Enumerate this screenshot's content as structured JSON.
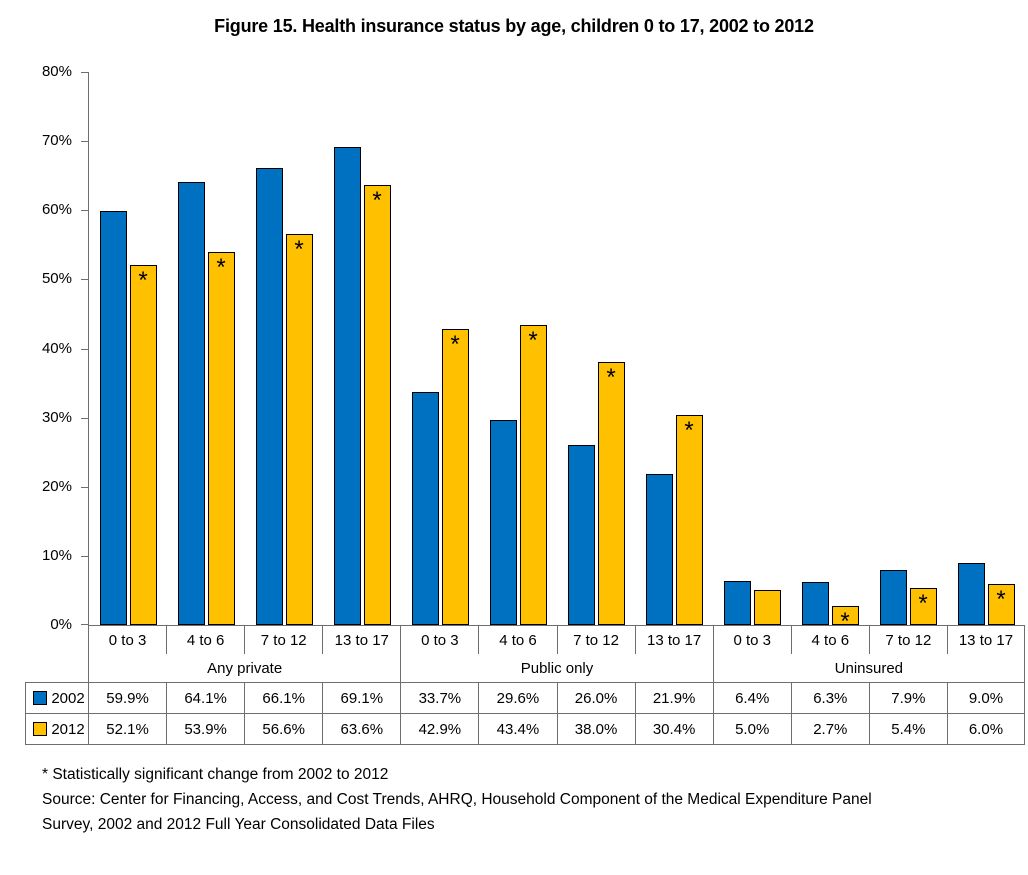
{
  "title": "Figure 15. Health insurance status by age, children 0 to 17, 2002 to 2012",
  "footnotes": {
    "significance": "* Statistically significant change from 2002 to 2012",
    "source": "Source: Center for Financing, Access, and Cost Trends, AHRQ, Household Component of the Medical Expenditure Panel Survey, 2002 and 2012 Full Year Consolidated Data Files"
  },
  "colors": {
    "series_2002": "#0070C0",
    "series_2012": "#FFC000",
    "bar_border": "#000000",
    "line": "#6e6e6e"
  },
  "chart_data": {
    "type": "bar",
    "title": "Figure 15. Health insurance status by age, children 0 to 17, 2002 to 2012",
    "xlabel": "",
    "ylabel": "",
    "ylim": [
      0,
      80
    ],
    "ytick_labels": [
      "0%",
      "10%",
      "20%",
      "30%",
      "40%",
      "50%",
      "60%",
      "70%",
      "80%"
    ],
    "grid": false,
    "legend_position": "table-left",
    "groups": [
      {
        "label": "Any private",
        "categories": [
          "0 to 3",
          "4 to 6",
          "7 to 12",
          "13 to 17"
        ]
      },
      {
        "label": "Public only",
        "categories": [
          "0 to 3",
          "4 to 6",
          "7 to 12",
          "13 to 17"
        ]
      },
      {
        "label": "Uninsured",
        "categories": [
          "0 to 3",
          "4 to 6",
          "7 to 12",
          "13 to 17"
        ]
      }
    ],
    "series": [
      {
        "name": "2002",
        "color": "#0070C0",
        "values": [
          59.9,
          64.1,
          66.1,
          69.1,
          33.7,
          29.6,
          26.0,
          21.9,
          6.4,
          6.3,
          7.9,
          9.0
        ],
        "value_labels": [
          "59.9%",
          "64.1%",
          "66.1%",
          "69.1%",
          "33.7%",
          "29.6%",
          "26.0%",
          "21.9%",
          "6.4%",
          "6.3%",
          "7.9%",
          "9.0%"
        ],
        "significant": [
          false,
          false,
          false,
          false,
          false,
          false,
          false,
          false,
          false,
          false,
          false,
          false
        ]
      },
      {
        "name": "2012",
        "color": "#FFC000",
        "values": [
          52.1,
          53.9,
          56.6,
          63.6,
          42.9,
          43.4,
          38.0,
          30.4,
          5.0,
          2.7,
          5.4,
          6.0
        ],
        "value_labels": [
          "52.1%",
          "53.9%",
          "56.6%",
          "63.6%",
          "42.9%",
          "43.4%",
          "38.0%",
          "30.4%",
          "5.0%",
          "2.7%",
          "5.4%",
          "6.0%"
        ],
        "significant": [
          true,
          true,
          true,
          true,
          true,
          true,
          true,
          true,
          false,
          true,
          true,
          true
        ]
      }
    ],
    "significance_marker": "*"
  }
}
